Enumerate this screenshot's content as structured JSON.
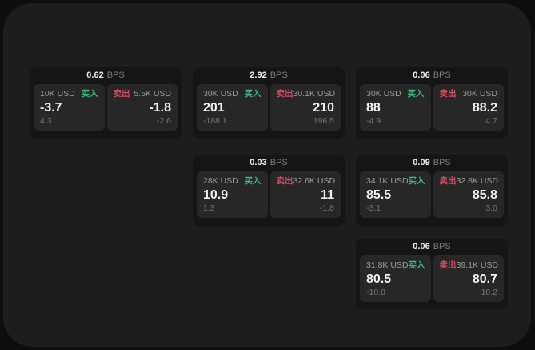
{
  "labels": {
    "bps_unit": "BPS",
    "buy": "买入",
    "sell": "卖出"
  },
  "colors": {
    "buy_green": "#3bb77e",
    "sell_red": "#d84a63",
    "surface": "#1d1d1f",
    "card": "#151515",
    "panel": "#272727"
  },
  "cards": [
    {
      "bps": "0.62",
      "buy": {
        "amount": "10K USD",
        "value": "-3.7",
        "sub": "4.3"
      },
      "sell": {
        "amount": "5.5K USD",
        "value": "-1.8",
        "sub": "-2.6"
      }
    },
    {
      "bps": "2.92",
      "buy": {
        "amount": "30K USD",
        "value": "201",
        "sub": "-188.1"
      },
      "sell": {
        "amount": "30.1K USD",
        "value": "210",
        "sub": "196.5"
      }
    },
    {
      "bps": "0.06",
      "buy": {
        "amount": "30K USD",
        "value": "88",
        "sub": "-4.9"
      },
      "sell": {
        "amount": "30K USD",
        "value": "88.2",
        "sub": "4.7"
      }
    },
    {
      "bps": "0.03",
      "buy": {
        "amount": "28K USD",
        "value": "10.9",
        "sub": "1.3"
      },
      "sell": {
        "amount": "32.6K USD",
        "value": "11",
        "sub": "-1.8"
      }
    },
    {
      "bps": "0.09",
      "buy": {
        "amount": "34.1K USD",
        "value": "85.5",
        "sub": "-3.1"
      },
      "sell": {
        "amount": "32.8K USD",
        "value": "85.8",
        "sub": "3.0"
      }
    },
    {
      "bps": "0.06",
      "buy": {
        "amount": "31.8K USD",
        "value": "80.5",
        "sub": "-10.8"
      },
      "sell": {
        "amount": "39.1K USD",
        "value": "80.7",
        "sub": "10.2"
      }
    }
  ]
}
